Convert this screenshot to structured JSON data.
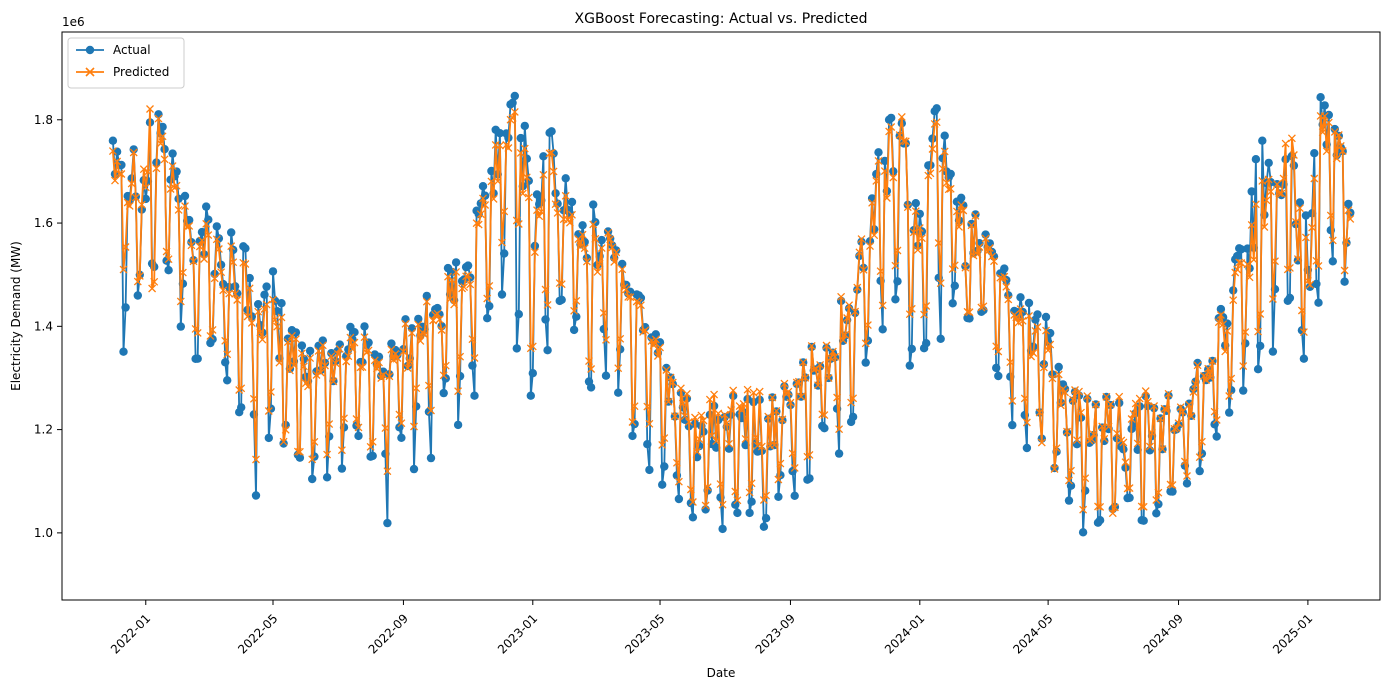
{
  "chart_data": {
    "type": "line",
    "title": "XGBoost Forecasting: Actual vs. Predicted",
    "xlabel": "Date",
    "ylabel": "Electricity Demand (MW)",
    "y_offset_label": "1e6",
    "x_range": [
      "2021-10-14",
      "2025-03-10"
    ],
    "y_range": [
      870000,
      1970000
    ],
    "x_ticks": [
      "2022-01",
      "2022-05",
      "2022-09",
      "2023-01",
      "2023-05",
      "2023-09",
      "2024-01",
      "2024-05",
      "2024-09",
      "2025-01"
    ],
    "y_ticks": [
      1000000,
      1200000,
      1400000,
      1600000,
      1800000
    ],
    "y_tick_labels": [
      "1.0",
      "1.2",
      "1.4",
      "1.6",
      "1.8"
    ],
    "grid": false,
    "legend_position": "top-left",
    "series": [
      {
        "name": "Actual",
        "color": "#1f77b4",
        "marker": "circle",
        "dates": [
          "2021-12-01",
          "2021-12-15",
          "2022-01-01",
          "2022-01-15",
          "2022-02-01",
          "2022-02-15",
          "2022-03-01",
          "2022-03-15",
          "2022-04-01",
          "2022-04-15",
          "2022-05-01",
          "2022-05-15",
          "2022-06-01",
          "2022-06-15",
          "2022-07-01",
          "2022-07-15",
          "2022-08-01",
          "2022-08-15",
          "2022-09-01",
          "2022-09-15",
          "2022-10-01",
          "2022-10-15",
          "2022-11-01",
          "2022-11-15",
          "2022-12-01",
          "2022-12-15",
          "2023-01-01",
          "2023-01-15",
          "2023-02-01",
          "2023-02-15",
          "2023-03-01",
          "2023-03-15",
          "2023-04-01",
          "2023-04-15",
          "2023-05-01",
          "2023-05-15",
          "2023-06-01",
          "2023-06-15",
          "2023-07-01",
          "2023-07-15",
          "2023-08-01",
          "2023-08-15",
          "2023-09-01",
          "2023-09-15",
          "2023-10-01",
          "2023-10-15",
          "2023-11-01",
          "2023-11-15",
          "2023-12-01",
          "2023-12-15",
          "2024-01-01",
          "2024-01-15",
          "2024-02-01",
          "2024-02-15",
          "2024-03-01",
          "2024-03-15",
          "2024-04-01",
          "2024-04-15",
          "2024-05-01",
          "2024-05-15",
          "2024-06-01",
          "2024-06-15",
          "2024-07-01",
          "2024-07-15",
          "2024-08-01",
          "2024-08-15",
          "2024-09-01",
          "2024-09-15",
          "2024-10-01",
          "2024-10-15",
          "2024-11-01",
          "2024-11-15",
          "2024-12-01",
          "2024-12-15",
          "2025-01-01",
          "2025-01-15",
          "2025-02-01",
          "2025-02-10"
        ],
        "values": [
          1700000,
          1650000,
          1550000,
          1750000,
          1600000,
          1520000,
          1500000,
          1470000,
          1450000,
          1380000,
          1350000,
          1300000,
          1280000,
          1270000,
          1300000,
          1320000,
          1290000,
          1280000,
          1300000,
          1350000,
          1380000,
          1400000,
          1450000,
          1550000,
          1700000,
          1800000,
          1450000,
          1620000,
          1600000,
          1550000,
          1500000,
          1550000,
          1450000,
          1380000,
          1300000,
          1220000,
          1150000,
          1120000,
          1130000,
          1150000,
          1140000,
          1160000,
          1200000,
          1240000,
          1280000,
          1320000,
          1400000,
          1520000,
          1650000,
          1700000,
          1450000,
          1800000,
          1600000,
          1500000,
          1550000,
          1480000,
          1400000,
          1350000,
          1300000,
          1200000,
          1150000,
          1160000,
          1140000,
          1120000,
          1130000,
          1150000,
          1170000,
          1220000,
          1300000,
          1350000,
          1450000,
          1550000,
          1620000,
          1600000,
          1420000,
          1780000,
          1650000,
          1620000
        ],
        "range_low": [
          1500000,
          1230000,
          1550000,
          1420000,
          1400000,
          1300000,
          1320000,
          1200000,
          1100000,
          1070000,
          1100000,
          1170000,
          1070000,
          1090000,
          1110000,
          1130000,
          1140000,
          1000000,
          1120000,
          1100000,
          1130000,
          1180000,
          1200000,
          1350000,
          1480000,
          1300000,
          1220000,
          1270000,
          1380000,
          1220000,
          1300000,
          1250000,
          1170000,
          1090000,
          1060000,
          1010000,
          960000,
          1030000,
          980000,
          1030000,
          935000,
          1010000,
          1030000,
          1080000,
          1120000,
          1140000,
          1210000,
          1300000,
          1400000,
          1400000,
          1200000,
          1400000,
          1320000,
          1310000,
          1360000,
          1260000,
          1120000,
          1130000,
          1160000,
          1010000,
          995000,
          1000000,
          1040000,
          990000,
          1000000,
          1020000,
          1060000,
          1100000,
          1140000,
          1180000,
          1240000,
          1300000,
          1350000,
          1260000,
          1270000,
          1450000,
          1470000,
          1480000
        ],
        "range_high": [
          1860000,
          1830000,
          1810000,
          1850000,
          1700000,
          1660000,
          1690000,
          1630000,
          1600000,
          1490000,
          1530000,
          1430000,
          1400000,
          1390000,
          1410000,
          1460000,
          1400000,
          1390000,
          1450000,
          1470000,
          1490000,
          1550000,
          1550000,
          1720000,
          1830000,
          1920000,
          1720000,
          1860000,
          1720000,
          1720000,
          1650000,
          1590000,
          1500000,
          1490000,
          1450000,
          1300000,
          1260000,
          1250000,
          1310000,
          1280000,
          1270000,
          1290000,
          1300000,
          1400000,
          1400000,
          1470000,
          1540000,
          1700000,
          1850000,
          1810000,
          1640000,
          1900000,
          1690000,
          1640000,
          1620000,
          1580000,
          1490000,
          1480000,
          1480000,
          1300000,
          1290000,
          1280000,
          1280000,
          1250000,
          1280000,
          1280000,
          1290000,
          1340000,
          1410000,
          1490000,
          1590000,
          1810000,
          1750000,
          1770000,
          1690000,
          1890000,
          1830000,
          1710000
        ]
      },
      {
        "name": "Predicted",
        "color": "#ff7f0e",
        "marker": "x",
        "dates": [
          "2021-12-01",
          "2021-12-15",
          "2022-01-01",
          "2022-01-15",
          "2022-02-01",
          "2022-02-15",
          "2022-03-01",
          "2022-03-15",
          "2022-04-01",
          "2022-04-15",
          "2022-05-01",
          "2022-05-15",
          "2022-06-01",
          "2022-06-15",
          "2022-07-01",
          "2022-07-15",
          "2022-08-01",
          "2022-08-15",
          "2022-09-01",
          "2022-09-15",
          "2022-10-01",
          "2022-10-15",
          "2022-11-01",
          "2022-11-15",
          "2022-12-01",
          "2022-12-15",
          "2023-01-01",
          "2023-01-15",
          "2023-02-01",
          "2023-02-15",
          "2023-03-01",
          "2023-03-15",
          "2023-04-01",
          "2023-04-15",
          "2023-05-01",
          "2023-05-15",
          "2023-06-01",
          "2023-06-15",
          "2023-07-01",
          "2023-07-15",
          "2023-08-01",
          "2023-08-15",
          "2023-09-01",
          "2023-09-15",
          "2023-10-01",
          "2023-10-15",
          "2023-11-01",
          "2023-11-15",
          "2023-12-01",
          "2023-12-15",
          "2024-01-01",
          "2024-01-15",
          "2024-02-01",
          "2024-02-15",
          "2024-03-01",
          "2024-03-15",
          "2024-04-01",
          "2024-04-15",
          "2024-05-01",
          "2024-05-15",
          "2024-06-01",
          "2024-06-15",
          "2024-07-01",
          "2024-07-15",
          "2024-08-01",
          "2024-08-15",
          "2024-09-01",
          "2024-09-15",
          "2024-10-01",
          "2024-10-15",
          "2024-11-01",
          "2024-11-15",
          "2024-12-01",
          "2024-12-15",
          "2025-01-01",
          "2025-01-15",
          "2025-02-01",
          "2025-02-10"
        ],
        "values": [
          1690000,
          1640000,
          1560000,
          1730000,
          1590000,
          1520000,
          1500000,
          1460000,
          1440000,
          1370000,
          1340000,
          1300000,
          1270000,
          1270000,
          1300000,
          1310000,
          1290000,
          1280000,
          1300000,
          1340000,
          1370000,
          1400000,
          1440000,
          1550000,
          1690000,
          1780000,
          1460000,
          1610000,
          1590000,
          1550000,
          1490000,
          1540000,
          1450000,
          1380000,
          1300000,
          1220000,
          1160000,
          1130000,
          1140000,
          1160000,
          1150000,
          1160000,
          1200000,
          1240000,
          1280000,
          1320000,
          1400000,
          1510000,
          1640000,
          1690000,
          1460000,
          1780000,
          1590000,
          1500000,
          1540000,
          1480000,
          1400000,
          1340000,
          1300000,
          1200000,
          1160000,
          1160000,
          1150000,
          1130000,
          1140000,
          1150000,
          1170000,
          1220000,
          1300000,
          1340000,
          1440000,
          1540000,
          1610000,
          1600000,
          1430000,
          1770000,
          1640000,
          1610000
        ],
        "range_low": [
          1520000,
          1480000,
          1420000,
          1460000,
          1450000,
          1380000,
          1330000,
          1300000,
          1170000,
          1140000,
          1190000,
          1140000,
          1110000,
          1140000,
          1150000,
          1160000,
          1160000,
          1110000,
          1160000,
          1210000,
          1230000,
          1230000,
          1300000,
          1390000,
          1550000,
          1620000,
          1300000,
          1390000,
          1420000,
          1300000,
          1320000,
          1360000,
          1170000,
          1200000,
          1160000,
          1060000,
          1000000,
          1030000,
          1040000,
          1050000,
          1020000,
          1050000,
          1100000,
          1130000,
          1170000,
          1190000,
          1250000,
          1360000,
          1450000,
          1510000,
          1300000,
          1500000,
          1450000,
          1340000,
          1380000,
          1320000,
          1180000,
          1190000,
          1110000,
          1070000,
          1040000,
          1040000,
          1030000,
          1020000,
          1030000,
          1050000,
          1070000,
          1120000,
          1180000,
          1220000,
          1300000,
          1380000,
          1460000,
          1400000,
          1330000,
          1550000,
          1500000,
          1500000
        ],
        "range_high": [
          1830000,
          1800000,
          1860000,
          1840000,
          1670000,
          1650000,
          1640000,
          1610000,
          1560000,
          1480000,
          1470000,
          1420000,
          1380000,
          1380000,
          1400000,
          1430000,
          1380000,
          1370000,
          1440000,
          1460000,
          1480000,
          1530000,
          1530000,
          1690000,
          1800000,
          1880000,
          1670000,
          1810000,
          1680000,
          1670000,
          1610000,
          1600000,
          1480000,
          1470000,
          1430000,
          1310000,
          1270000,
          1290000,
          1310000,
          1300000,
          1290000,
          1290000,
          1310000,
          1400000,
          1410000,
          1480000,
          1560000,
          1700000,
          1820000,
          1830000,
          1610000,
          1870000,
          1660000,
          1640000,
          1620000,
          1560000,
          1460000,
          1450000,
          1440000,
          1290000,
          1300000,
          1280000,
          1280000,
          1280000,
          1290000,
          1280000,
          1300000,
          1330000,
          1420000,
          1470000,
          1560000,
          1690000,
          1760000,
          1830000,
          1610000,
          1860000,
          1850000,
          1690000
        ]
      }
    ]
  }
}
